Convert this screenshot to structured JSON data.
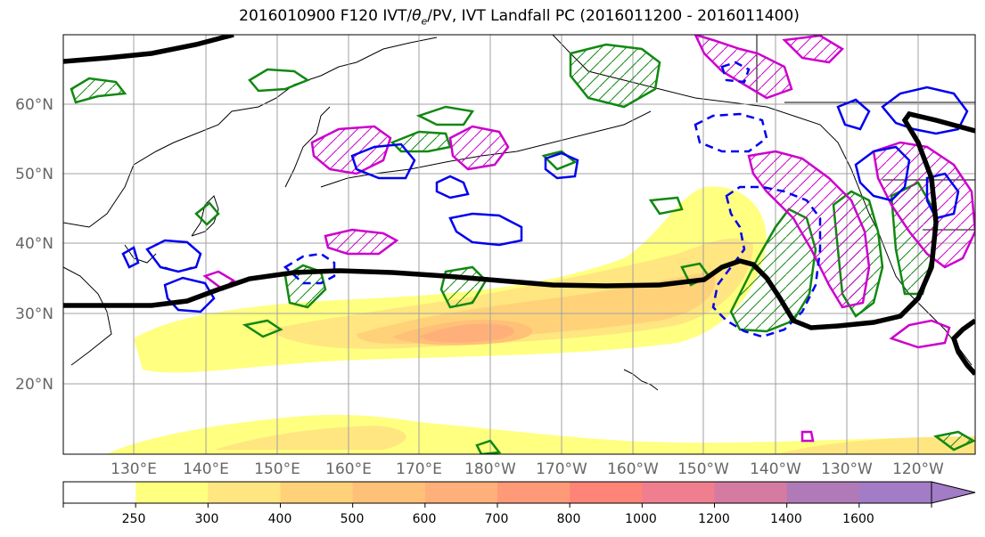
{
  "title": {
    "prefix": "2016010900 F120 IVT/",
    "theta": "θ",
    "theta_sub": "e",
    "suffix": "/PV, IVT Landfall PC (2016011200 - 2016011400)"
  },
  "map": {
    "lat_labels": [
      "60°N",
      "50°N",
      "40°N",
      "30°N",
      "20°N"
    ],
    "lon_labels": [
      "130°E",
      "140°E",
      "150°E",
      "160°E",
      "170°E",
      "180°W",
      "170°W",
      "160°W",
      "150°W",
      "140°W",
      "130°W",
      "120°W"
    ]
  },
  "colorbar": {
    "ticks": [
      "250",
      "300",
      "400",
      "500",
      "600",
      "700",
      "800",
      "1000",
      "1200",
      "1400",
      "1600"
    ],
    "colors": [
      "#ffffff",
      "#ffff80",
      "#ffe680",
      "#ffd27a",
      "#ffc078",
      "#ffb07a",
      "#ff9a78",
      "#ff8478",
      "#ef7f8f",
      "#d57aa0",
      "#b07ab8",
      "#a27cc6"
    ]
  },
  "colors": {
    "ivt_contour": "#000000",
    "theta_e_contour": "#0000ff",
    "pv_positive": "#cc00cc",
    "pv_green": "#118811",
    "grid": "#a0a0a0"
  }
}
